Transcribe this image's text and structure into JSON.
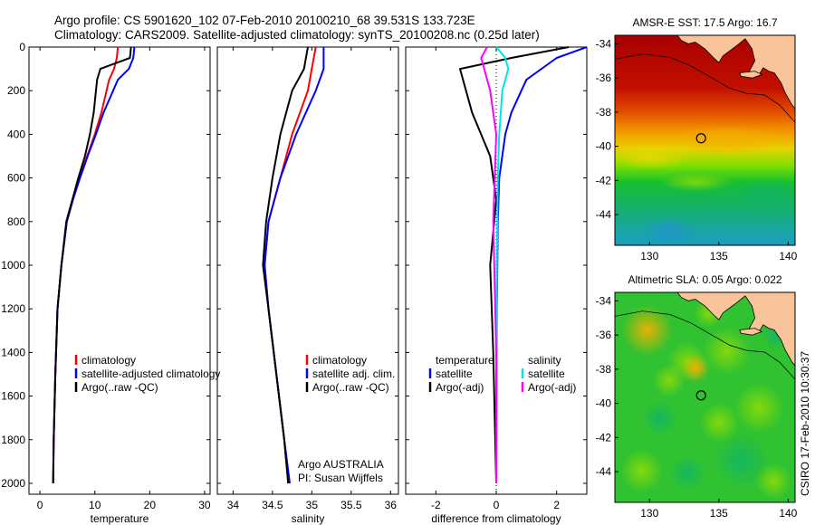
{
  "header": {
    "line1": "Argo profile: CS 5901620_102 07-Feb-2010 20100210_68 39.531S 133.723E",
    "line2": "Climatology: CARS2009. Satellite-adjusted climatology: synTS_20100208.nc (0.25d later)"
  },
  "side_text": "CSIRO 17-Feb-2010 10:30:37",
  "colors": {
    "climatology": "#ff0000",
    "satellite": "#0000ff",
    "argo": "#000000",
    "satellite_diff_s": "#00e5e5",
    "argo_diff_s": "#ff00ff",
    "land": "#f9c49a"
  },
  "chart_data": [
    {
      "type": "line",
      "xlabel": "temperature",
      "ylabel": "",
      "xlim": [
        -2,
        31
      ],
      "ylim": [
        2050,
        0
      ],
      "xticks": [
        0,
        10,
        20,
        30
      ],
      "yticks": [
        0,
        200,
        400,
        600,
        800,
        1000,
        1200,
        1400,
        1600,
        1800,
        2000
      ],
      "legend": [
        {
          "label": "climatology",
          "color": "#ff0000"
        },
        {
          "label": "satellite-adjusted climatology",
          "color": "#0000ff"
        },
        {
          "label": "Argo(..raw -QC)",
          "color": "#000000"
        }
      ],
      "series": [
        {
          "name": "climatology",
          "color": "#ff0000",
          "x": [
            14.2,
            14.0,
            13.5,
            12.6,
            11.2,
            10.0,
            8.6,
            7.2,
            6.0,
            4.9,
            3.9,
            3.2,
            2.8,
            2.5,
            2.4
          ],
          "y": [
            0,
            50,
            100,
            150,
            300,
            400,
            500,
            600,
            700,
            800,
            1000,
            1200,
            1500,
            1800,
            2000
          ]
        },
        {
          "name": "satellite-adjusted climatology",
          "color": "#0000ff",
          "x": [
            17.2,
            17.0,
            16.2,
            14.2,
            11.6,
            10.2,
            8.7,
            7.3,
            6.0,
            4.9,
            3.9,
            3.2,
            2.8,
            2.5,
            2.4
          ],
          "y": [
            0,
            50,
            100,
            150,
            300,
            400,
            500,
            600,
            700,
            800,
            1000,
            1200,
            1500,
            1800,
            2000
          ]
        },
        {
          "name": "Argo(..raw -QC)",
          "color": "#000000",
          "x": [
            16.6,
            16.4,
            11.0,
            10.4,
            9.8,
            9.1,
            8.2,
            7.0,
            5.9,
            4.8,
            3.9,
            3.2,
            2.8,
            2.5,
            2.4
          ],
          "y": [
            0,
            50,
            100,
            150,
            300,
            400,
            500,
            600,
            700,
            800,
            1000,
            1200,
            1500,
            1800,
            2000
          ]
        }
      ]
    },
    {
      "type": "line",
      "xlabel": "salinity",
      "ylabel": "",
      "xlim": [
        33.8,
        36.1
      ],
      "ylim": [
        2050,
        0
      ],
      "xticks": [
        34,
        34.5,
        35,
        35.5,
        36
      ],
      "annotation": [
        "Argo AUSTRALIA",
        "PI: Susan Wijffels"
      ],
      "legend": [
        {
          "label": "climatology",
          "color": "#ff0000"
        },
        {
          "label": "satellite adj. clim.",
          "color": "#0000ff"
        },
        {
          "label": "Argo(..raw -QC)",
          "color": "#000000"
        }
      ],
      "series": [
        {
          "name": "climatology",
          "color": "#ff0000",
          "x": [
            35.05,
            35.0,
            34.95,
            34.75,
            34.6,
            34.45,
            34.4,
            34.45,
            34.55,
            34.65,
            34.7
          ],
          "y": [
            0,
            100,
            200,
            400,
            600,
            800,
            1000,
            1200,
            1500,
            1800,
            2000
          ]
        },
        {
          "name": "satellite adj. clim.",
          "color": "#0000ff",
          "x": [
            35.15,
            35.15,
            35.05,
            34.8,
            34.6,
            34.45,
            34.4,
            34.45,
            34.55,
            34.65,
            34.72
          ],
          "y": [
            0,
            100,
            200,
            400,
            600,
            800,
            1000,
            1200,
            1500,
            1800,
            2000
          ]
        },
        {
          "name": "Argo(..raw -QC)",
          "color": "#000000",
          "x": [
            34.95,
            34.9,
            34.75,
            34.6,
            34.5,
            34.42,
            34.38,
            34.45,
            34.55,
            34.65,
            34.7
          ],
          "y": [
            0,
            100,
            200,
            400,
            600,
            800,
            1000,
            1200,
            1500,
            1800,
            2000
          ]
        }
      ]
    },
    {
      "type": "line",
      "xlabel": "difference from climatology",
      "ylabel": "",
      "xlim": [
        -3,
        3
      ],
      "ylim": [
        2050,
        0
      ],
      "xticks": [
        -2,
        0,
        2
      ],
      "legend": [
        {
          "label": "temperature",
          "color": ""
        },
        {
          "label": "satellite",
          "color": "#0000ff"
        },
        {
          "label": "Argo(-adj)",
          "color": "#000000"
        },
        {
          "label": "salinity",
          "color": ""
        },
        {
          "label": "satellite",
          "color": "#00e5e5"
        },
        {
          "label": "Argo(-adj)",
          "color": "#ff00ff"
        }
      ],
      "series": [
        {
          "name": "satellite",
          "color": "#0000ff",
          "x": [
            3.0,
            2.0,
            1.0,
            0.5,
            0.3,
            0.1,
            0.05,
            0.02,
            0.0
          ],
          "y": [
            0,
            50,
            150,
            300,
            400,
            600,
            800,
            1200,
            2000
          ]
        },
        {
          "name": "Argo(-adj)",
          "color": "#000000",
          "x": [
            2.4,
            0.5,
            -1.2,
            -0.8,
            -0.2,
            0.0,
            -0.2,
            -0.1,
            0.0
          ],
          "y": [
            0,
            50,
            100,
            300,
            500,
            700,
            1000,
            1400,
            2000
          ]
        },
        {
          "name": "satellite",
          "color": "#00e5e5",
          "x": [
            0.0,
            0.3,
            0.4,
            0.2,
            0.1,
            0.05,
            0.02,
            0.0
          ],
          "y": [
            0,
            50,
            100,
            200,
            400,
            600,
            1000,
            2000
          ]
        },
        {
          "name": "Argo(-adj)",
          "color": "#ff00ff",
          "x": [
            -0.3,
            -0.5,
            -0.4,
            -0.2,
            0.0,
            -0.1,
            0.0,
            0.0
          ],
          "y": [
            0,
            50,
            100,
            200,
            400,
            800,
            1400,
            2000
          ]
        }
      ]
    },
    {
      "type": "heatmap",
      "title": "AMSR-E SST: 17.5 Argo: 16.7",
      "xlim": [
        127.5,
        140.5
      ],
      "ylim": [
        -45.8,
        -33.5
      ],
      "xticks": [
        130,
        135,
        140
      ],
      "yticks": [
        -34,
        -36,
        -38,
        -40,
        -42,
        -44
      ],
      "marker": {
        "lon": 133.72,
        "lat": -39.53
      }
    },
    {
      "type": "heatmap",
      "title": "Altimetric SLA: 0.05 Argo: 0.022",
      "xlim": [
        127.5,
        140.5
      ],
      "ylim": [
        -45.8,
        -33.5
      ],
      "xticks": [
        130,
        135,
        140
      ],
      "yticks": [
        -34,
        -36,
        -38,
        -40,
        -42,
        -44
      ],
      "marker": {
        "lon": 133.72,
        "lat": -39.53
      }
    }
  ]
}
